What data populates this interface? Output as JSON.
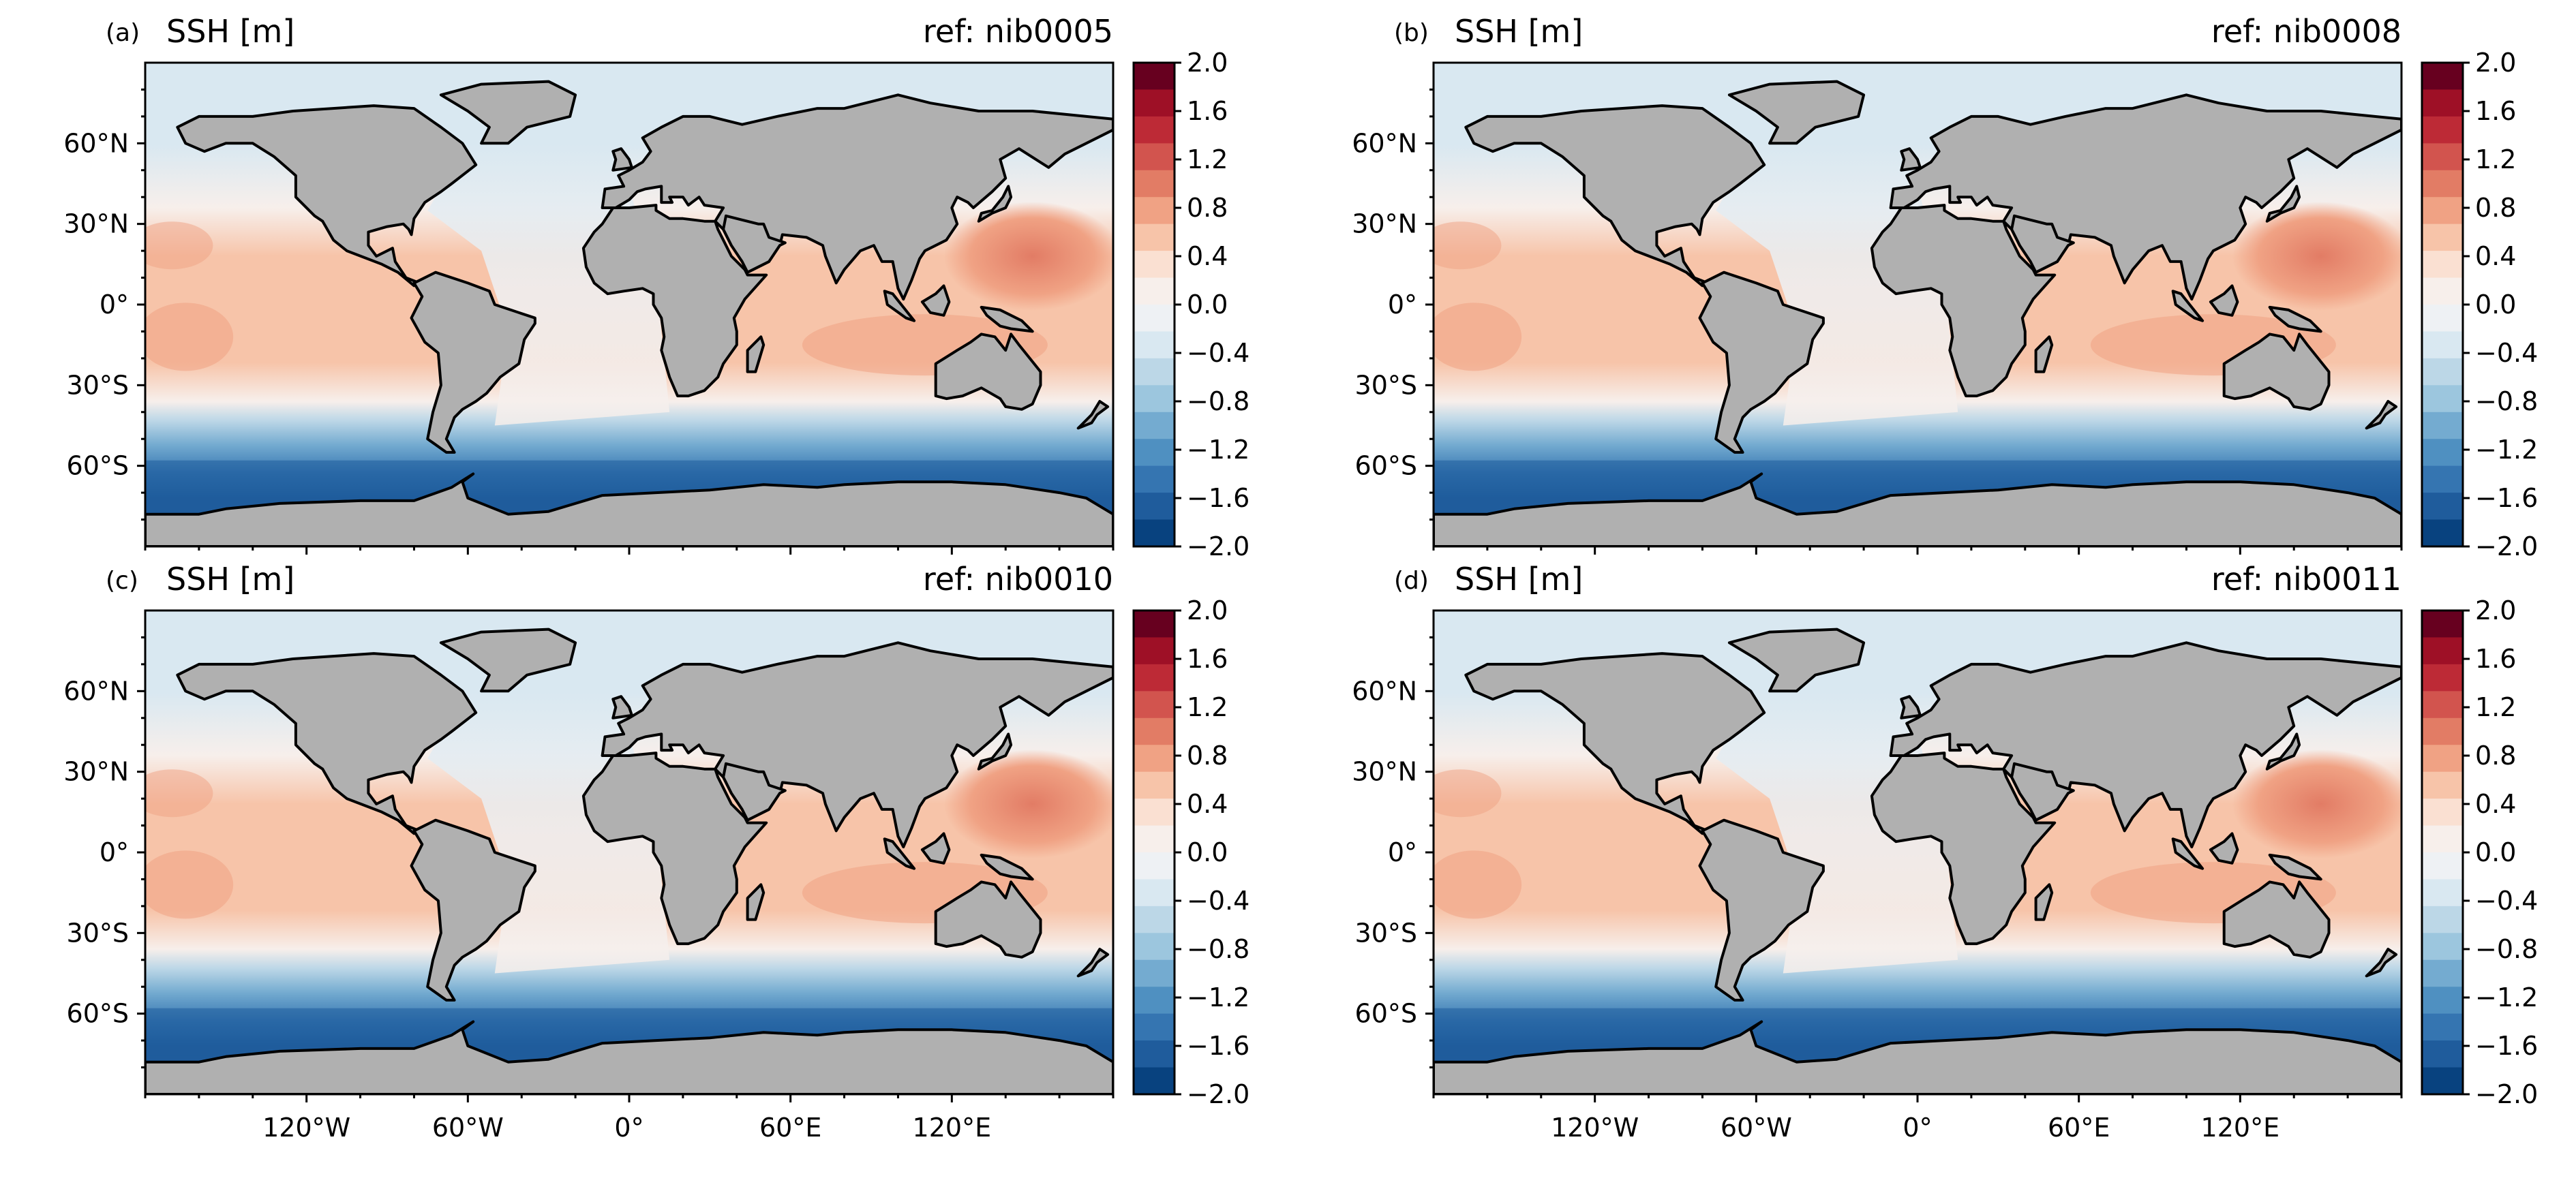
{
  "figure": {
    "panels": [
      {
        "id": "a",
        "letter": "(a)",
        "title": "SSH [m]",
        "ref": "ref: nib0005"
      },
      {
        "id": "b",
        "letter": "(b)",
        "title": "SSH [m]",
        "ref": "ref: nib0008"
      },
      {
        "id": "c",
        "letter": "(c)",
        "title": "SSH [m]",
        "ref": "ref: nib0010"
      },
      {
        "id": "d",
        "letter": "(d)",
        "title": "SSH [m]",
        "ref": "ref: nib0011"
      }
    ],
    "lat_ticks": [
      "60°N",
      "30°N",
      "0°",
      "30°S",
      "60°S"
    ],
    "lon_ticks": [
      "120°W",
      "60°W",
      "0°",
      "60°E",
      "120°E"
    ],
    "colorbar": {
      "ticks": [
        "2.0",
        "1.6",
        "1.2",
        "0.8",
        "0.4",
        "0.0",
        "−0.4",
        "−0.8",
        "−1.2",
        "−1.6",
        "−2.0"
      ],
      "levels": [
        "#67001f",
        "#9e1026",
        "#bd2a36",
        "#d2544e",
        "#e27c65",
        "#f0a284",
        "#f7c4a9",
        "#fae0d2",
        "#f7efeb",
        "#eef1f4",
        "#d9e8f1",
        "#bcd7e7",
        "#9cc6de",
        "#74abd0",
        "#4f90c1",
        "#3575b1",
        "#1f5c9c",
        "#08427f"
      ]
    },
    "ocean_colors": {
      "polar_south": "#1f5c9c",
      "south_mid": "#4f90c1",
      "south_edge": "#9cc6de",
      "neutral": "#eef1f4",
      "north": "#d9e8f1",
      "warm": "#f7c4a9",
      "warmer": "#f0a284",
      "hot": "#e27c65"
    }
  }
}
